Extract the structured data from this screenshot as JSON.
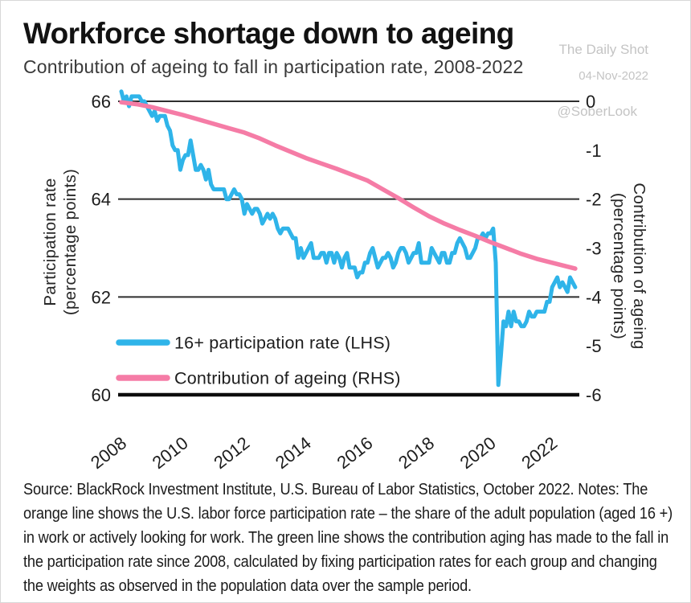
{
  "watermark": {
    "line1": "The Daily Shot",
    "line2": "04-Nov-2022",
    "handle": "@SoberLook"
  },
  "source_note": "Source: BlackRock Investment Institute, U.S. Bureau of Labor Statistics, October 2022. Notes: The orange line shows the U.S. labor force participation rate – the share of the adult population (aged 16 +) in work or actively looking for work. The green line shows the contribution aging has made to the fall in the participation rate since 2008, calculated by fixing participation rates for each group and changing the weights as observed in the population data over the sample period.",
  "chart_data": {
    "type": "line",
    "title": "Workforce shortage down to ageing",
    "subtitle": "Contribution of ageing to fall in participation rate, 2008-2022",
    "x_axis": {
      "ticks": [
        2008,
        2010,
        2012,
        2014,
        2016,
        2018,
        2020,
        2022
      ],
      "range": [
        2008,
        2022.83
      ],
      "frequency": "monthly"
    },
    "y_axis_left": {
      "label_line1": "Participation rate",
      "label_line2": "(percentage points)",
      "ticks": [
        66,
        64,
        62,
        60
      ],
      "range": [
        60,
        66
      ]
    },
    "y_axis_right": {
      "label_line1": "Contribution of ageing",
      "label_line2": "(percentage points)",
      "ticks": [
        0,
        -1,
        -2,
        -3,
        -4,
        -5,
        -6
      ],
      "range": [
        -6,
        0
      ]
    },
    "gridlines_left_values": [
      66,
      64,
      62
    ],
    "baseline_left_value": 60,
    "legend_position": "bottom-left-inside",
    "style": {
      "blue": "#2FB4E9",
      "pink": "#F57CA6",
      "grid_color": "#2e2e2e",
      "axis_color": "#0d0d0d"
    },
    "series": [
      {
        "id": "participation-rate",
        "name": "16+ participation rate (LHS)",
        "axis": "left",
        "color": "#2FB4E9",
        "width": 5,
        "start_year": 2008,
        "monthly_values": [
          66.2,
          66.0,
          66.1,
          65.9,
          66.1,
          66.1,
          66.1,
          66.1,
          66.0,
          66.0,
          65.9,
          65.8,
          65.7,
          65.8,
          65.6,
          65.7,
          65.7,
          65.7,
          65.5,
          65.4,
          65.1,
          65.0,
          65.0,
          64.6,
          64.8,
          64.9,
          64.9,
          65.2,
          64.9,
          64.6,
          64.6,
          64.7,
          64.6,
          64.4,
          64.6,
          64.3,
          64.2,
          64.2,
          64.2,
          64.2,
          64.2,
          64.0,
          64.0,
          64.1,
          64.2,
          64.1,
          64.1,
          64.0,
          63.7,
          63.9,
          63.8,
          63.7,
          63.8,
          63.8,
          63.7,
          63.5,
          63.6,
          63.7,
          63.6,
          63.7,
          63.6,
          63.4,
          63.3,
          63.4,
          63.4,
          63.4,
          63.3,
          63.2,
          63.2,
          62.8,
          63.0,
          62.8,
          62.9,
          63.0,
          63.1,
          62.8,
          62.8,
          62.8,
          62.9,
          62.9,
          62.7,
          62.9,
          62.9,
          62.7,
          62.9,
          62.8,
          62.6,
          62.8,
          62.9,
          62.6,
          62.6,
          62.6,
          62.4,
          62.5,
          62.5,
          62.7,
          62.7,
          62.9,
          63.0,
          62.8,
          62.6,
          62.7,
          62.8,
          62.8,
          62.9,
          62.8,
          62.6,
          62.7,
          62.9,
          63.0,
          63.0,
          62.9,
          62.7,
          62.8,
          62.9,
          62.9,
          63.1,
          62.7,
          62.7,
          62.7,
          62.7,
          63.0,
          62.9,
          62.8,
          62.7,
          62.9,
          62.9,
          62.7,
          62.7,
          62.9,
          62.9,
          63.1,
          63.2,
          63.1,
          63.0,
          62.8,
          62.8,
          62.9,
          63.0,
          63.2,
          63.2,
          63.3,
          63.2,
          63.3,
          63.3,
          63.4,
          62.7,
          60.2,
          60.8,
          61.5,
          61.4,
          61.7,
          61.4,
          61.7,
          61.5,
          61.5,
          61.4,
          61.4,
          61.5,
          61.7,
          61.6,
          61.6,
          61.7,
          61.7,
          61.7,
          61.7,
          61.9,
          61.9,
          62.2,
          62.3,
          62.4,
          62.2,
          62.3,
          62.2,
          62.1,
          62.4,
          62.3,
          62.2
        ]
      },
      {
        "id": "ageing-contribution",
        "name": "Contribution of ageing (RHS)",
        "axis": "right",
        "color": "#F57CA6",
        "width": 5.5,
        "points": [
          [
            2008.0,
            -0.02
          ],
          [
            2008.5,
            -0.06
          ],
          [
            2009.0,
            -0.12
          ],
          [
            2009.5,
            -0.2
          ],
          [
            2010.0,
            -0.28
          ],
          [
            2010.5,
            -0.37
          ],
          [
            2011.0,
            -0.46
          ],
          [
            2011.5,
            -0.55
          ],
          [
            2012.0,
            -0.64
          ],
          [
            2012.5,
            -0.76
          ],
          [
            2013.0,
            -0.9
          ],
          [
            2013.5,
            -1.03
          ],
          [
            2014.0,
            -1.16
          ],
          [
            2014.5,
            -1.27
          ],
          [
            2015.0,
            -1.38
          ],
          [
            2015.5,
            -1.5
          ],
          [
            2016.0,
            -1.62
          ],
          [
            2016.5,
            -1.8
          ],
          [
            2017.0,
            -1.98
          ],
          [
            2017.5,
            -2.17
          ],
          [
            2018.0,
            -2.35
          ],
          [
            2018.5,
            -2.5
          ],
          [
            2019.0,
            -2.63
          ],
          [
            2019.5,
            -2.75
          ],
          [
            2020.0,
            -2.88
          ],
          [
            2020.5,
            -3.0
          ],
          [
            2021.0,
            -3.12
          ],
          [
            2021.5,
            -3.22
          ],
          [
            2022.0,
            -3.3
          ],
          [
            2022.75,
            -3.42
          ]
        ]
      }
    ]
  }
}
